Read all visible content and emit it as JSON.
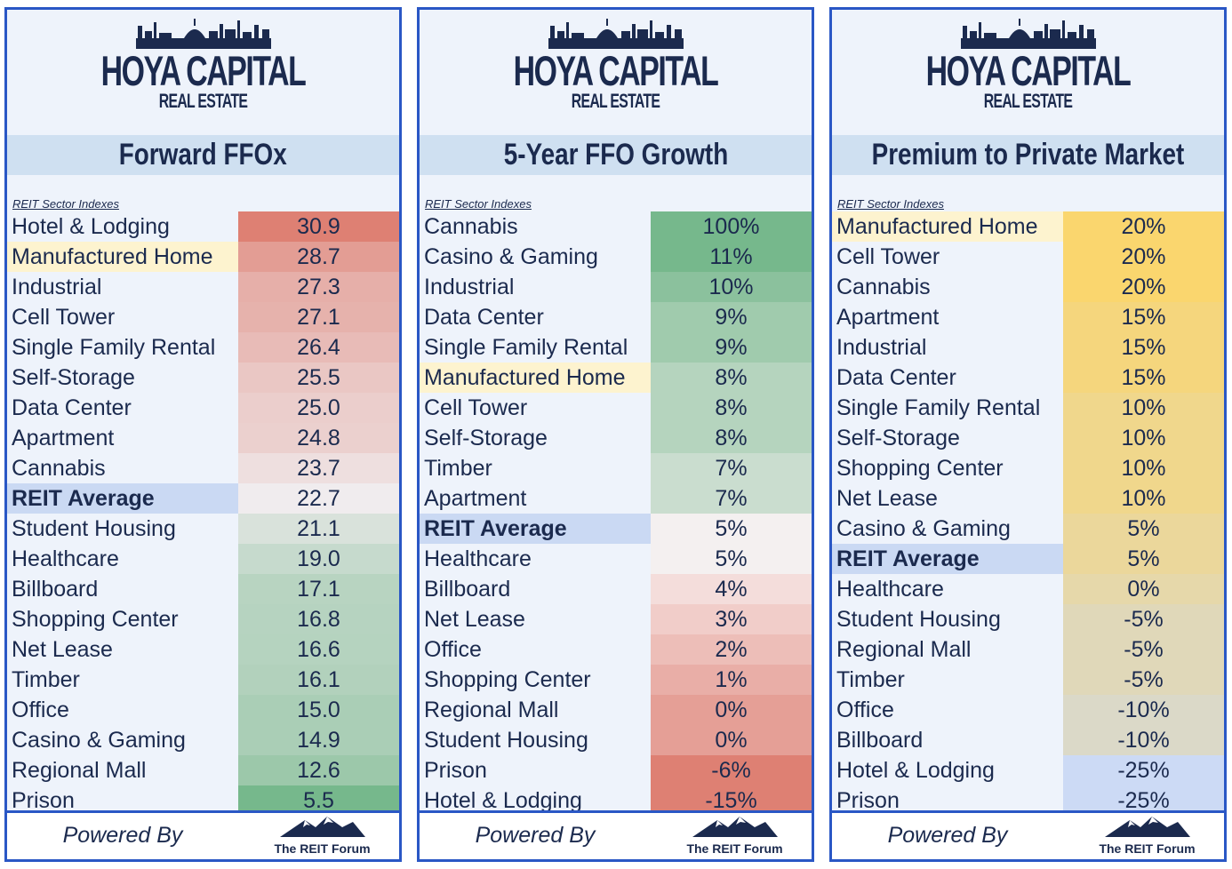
{
  "brand": {
    "name": "HOYA CAPITAL",
    "sub": "REAL ESTATE"
  },
  "footer": {
    "powered": "Powered By",
    "forum": "The REIT Forum"
  },
  "index_label": "REIT Sector Indexes",
  "colors": {
    "border": "#2a57c5",
    "title_bar": "#cfe0f1",
    "highlight": "#fdf3cf",
    "average": "#cad9f3",
    "text": "#1b2a4e"
  },
  "chart_data": [
    {
      "type": "table",
      "title": "Forward FFOx",
      "scale": "red-to-green",
      "rows": [
        {
          "label": "Hotel & Lodging",
          "value": "30.9",
          "v": 30.9
        },
        {
          "label": "Manufactured Home",
          "value": "28.7",
          "v": 28.7,
          "highlight": true
        },
        {
          "label": "Industrial",
          "value": "27.3",
          "v": 27.3
        },
        {
          "label": "Cell Tower",
          "value": "27.1",
          "v": 27.1
        },
        {
          "label": "Single Family Rental",
          "value": "26.4",
          "v": 26.4
        },
        {
          "label": "Self-Storage",
          "value": "25.5",
          "v": 25.5
        },
        {
          "label": "Data Center",
          "value": "25.0",
          "v": 25.0
        },
        {
          "label": "Apartment",
          "value": "24.8",
          "v": 24.8
        },
        {
          "label": "Cannabis",
          "value": "23.7",
          "v": 23.7
        },
        {
          "label": "REIT Average",
          "value": "22.7",
          "v": 22.7,
          "average": true
        },
        {
          "label": "Student Housing",
          "value": "21.1",
          "v": 21.1
        },
        {
          "label": "Healthcare",
          "value": "19.0",
          "v": 19.0
        },
        {
          "label": "Billboard",
          "value": "17.1",
          "v": 17.1
        },
        {
          "label": "Shopping Center",
          "value": "16.8",
          "v": 16.8
        },
        {
          "label": "Net Lease",
          "value": "16.6",
          "v": 16.6
        },
        {
          "label": "Timber",
          "value": "16.1",
          "v": 16.1
        },
        {
          "label": "Office",
          "value": "15.0",
          "v": 15.0
        },
        {
          "label": "Casino & Gaming",
          "value": "14.9",
          "v": 14.9
        },
        {
          "label": "Regional Mall",
          "value": "12.6",
          "v": 12.6
        },
        {
          "label": "Prison",
          "value": "5.5",
          "v": 5.5
        }
      ]
    },
    {
      "type": "table",
      "title": "5-Year FFO Growth",
      "scale": "green-to-red",
      "rows": [
        {
          "label": "Cannabis",
          "value": "100%",
          "v": 100
        },
        {
          "label": "Casino & Gaming",
          "value": "11%",
          "v": 11
        },
        {
          "label": "Industrial",
          "value": "10%",
          "v": 10
        },
        {
          "label": "Data Center",
          "value": "9%",
          "v": 9
        },
        {
          "label": "Single Family Rental",
          "value": "9%",
          "v": 9
        },
        {
          "label": "Manufactured Home",
          "value": "8%",
          "v": 8,
          "highlight": true
        },
        {
          "label": "Cell Tower",
          "value": "8%",
          "v": 8
        },
        {
          "label": "Self-Storage",
          "value": "8%",
          "v": 8
        },
        {
          "label": "Timber",
          "value": "7%",
          "v": 7
        },
        {
          "label": "Apartment",
          "value": "7%",
          "v": 7
        },
        {
          "label": "REIT Average",
          "value": "5%",
          "v": 5,
          "average": true
        },
        {
          "label": "Healthcare",
          "value": "5%",
          "v": 5
        },
        {
          "label": "Billboard",
          "value": "4%",
          "v": 4
        },
        {
          "label": "Net Lease",
          "value": "3%",
          "v": 3
        },
        {
          "label": "Office",
          "value": "2%",
          "v": 2
        },
        {
          "label": "Shopping Center",
          "value": "1%",
          "v": 1
        },
        {
          "label": "Regional Mall",
          "value": "0%",
          "v": 0
        },
        {
          "label": "Student Housing",
          "value": "0%",
          "v": 0
        },
        {
          "label": "Prison",
          "value": "-6%",
          "v": -6
        },
        {
          "label": "Hotel & Lodging",
          "value": "-15%",
          "v": -15
        }
      ]
    },
    {
      "type": "table",
      "title": "Premium to Private Market",
      "scale": "yellow-to-blue",
      "rows": [
        {
          "label": "Manufactured Home",
          "value": "20%",
          "v": 20,
          "highlight": true
        },
        {
          "label": "Cell Tower",
          "value": "20%",
          "v": 20
        },
        {
          "label": "Cannabis",
          "value": "20%",
          "v": 20
        },
        {
          "label": "Apartment",
          "value": "15%",
          "v": 15
        },
        {
          "label": "Industrial",
          "value": "15%",
          "v": 15
        },
        {
          "label": "Data Center",
          "value": "15%",
          "v": 15
        },
        {
          "label": "Single Family Rental",
          "value": "10%",
          "v": 10
        },
        {
          "label": "Self-Storage",
          "value": "10%",
          "v": 10
        },
        {
          "label": "Shopping Center",
          "value": "10%",
          "v": 10
        },
        {
          "label": "Net Lease",
          "value": "10%",
          "v": 10
        },
        {
          "label": "Casino & Gaming",
          "value": "5%",
          "v": 5
        },
        {
          "label": "REIT Average",
          "value": "5%",
          "v": 5,
          "average": true
        },
        {
          "label": "Healthcare",
          "value": "0%",
          "v": 0
        },
        {
          "label": "Student Housing",
          "value": "-5%",
          "v": -5
        },
        {
          "label": "Regional Mall",
          "value": "-5%",
          "v": -5
        },
        {
          "label": "Timber",
          "value": "-5%",
          "v": -5
        },
        {
          "label": "Office",
          "value": "-10%",
          "v": -10
        },
        {
          "label": "Billboard",
          "value": "-10%",
          "v": -10
        },
        {
          "label": "Hotel & Lodging",
          "value": "-25%",
          "v": -25
        },
        {
          "label": "Prison",
          "value": "-25%",
          "v": -25
        }
      ]
    }
  ]
}
